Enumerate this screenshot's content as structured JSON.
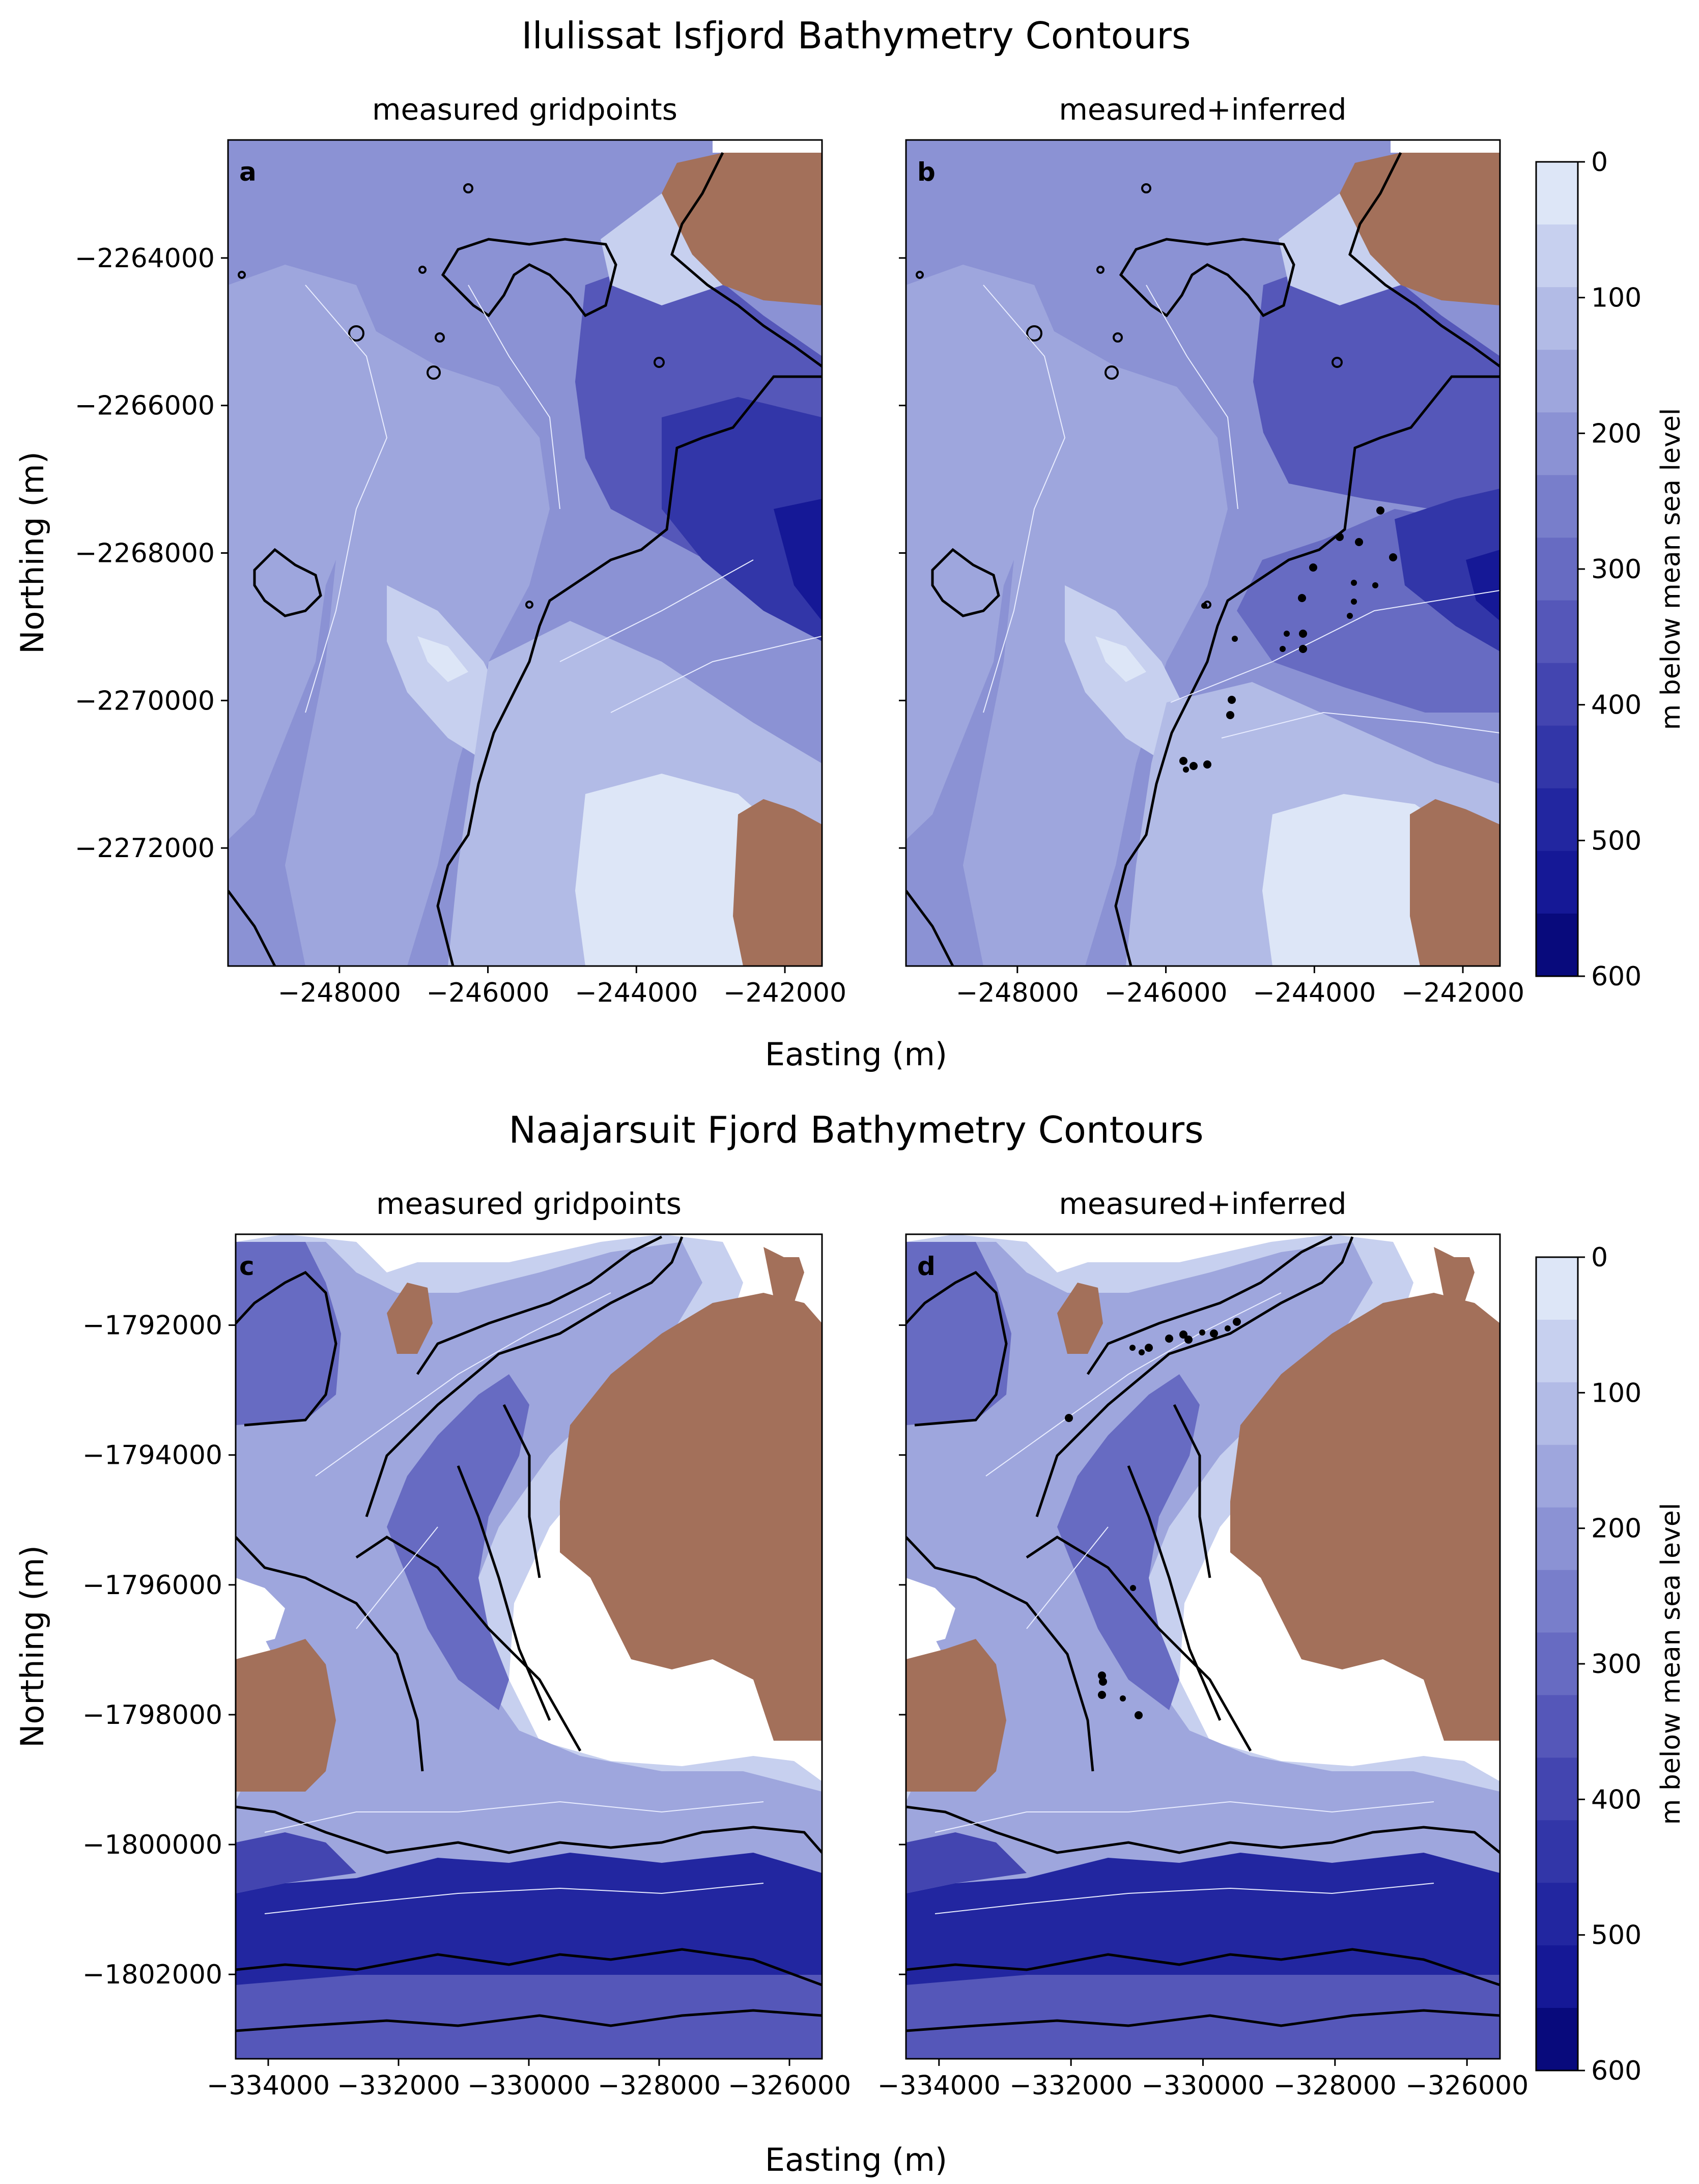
{
  "colors": {
    "land": "#a3705a",
    "outline": "#000000",
    "contour_line": "#e8ecff",
    "bands": [
      "#dde6f7",
      "#c7d0ef",
      "#b2bbe6",
      "#9ea6dd",
      "#8b92d4",
      "#787ecb",
      "#676bc2",
      "#5557b9",
      "#4345b0",
      "#3236a8",
      "#2226a0",
      "#151896",
      "#080a7c"
    ]
  },
  "figure": {
    "top_title": "Ilulissat Isfjord Bathymetry Contours",
    "bottom_title": "Naajarsuit Fjord Bathymetry Contours",
    "top_xlabel": "Easting (m)",
    "bottom_xlabel": "Easting (m)",
    "top_ylabel": "Northing (m)",
    "bottom_ylabel": "Northing (m)"
  },
  "chart_data": [
    {
      "type": "heatmap",
      "panel": "a",
      "title": "measured gridpoints",
      "xlabel": "Easting (m)",
      "ylabel": "Northing (m)",
      "xlim": [
        -249500,
        -241500
      ],
      "ylim": [
        -2273600,
        -2262400
      ],
      "xticks": [
        -248000,
        -246000,
        -244000,
        -242000
      ],
      "yticks": [
        -2264000,
        -2266000,
        -2268000,
        -2270000,
        -2272000
      ],
      "xtick_labels": [
        "−248000",
        "−246000",
        "−244000",
        "−242000"
      ],
      "ytick_labels": [
        "−2264000",
        "−2266000",
        "−2268000",
        "−2270000",
        "−2272000"
      ],
      "colorbar": {
        "label": "m below mean sea level",
        "range": [
          0,
          600
        ],
        "ticks": [
          0,
          100,
          200,
          300,
          400,
          500,
          600
        ],
        "tick_labels": [
          "0",
          "100",
          "200",
          "300",
          "400",
          "500",
          "600"
        ],
        "levels": 13
      }
    },
    {
      "type": "heatmap",
      "panel": "b",
      "title": "measured+inferred",
      "xlabel": "Easting (m)",
      "xlim": [
        -249500,
        -241500
      ],
      "ylim": [
        -2273600,
        -2262400
      ],
      "xticks": [
        -248000,
        -246000,
        -244000,
        -242000
      ],
      "xtick_labels": [
        "−248000",
        "−246000",
        "−244000",
        "−242000"
      ],
      "colorbar": {
        "label": "m below mean sea level",
        "range": [
          0,
          600
        ],
        "ticks": [
          0,
          100,
          200,
          300,
          400,
          500,
          600
        ],
        "tick_labels": [
          "0",
          "100",
          "200",
          "300",
          "400",
          "500",
          "600"
        ],
        "levels": 13
      }
    },
    {
      "type": "heatmap",
      "panel": "c",
      "title": "measured gridpoints",
      "xlabel": "Easting (m)",
      "ylabel": "Northing (m)",
      "xlim": [
        -334500,
        -325500
      ],
      "ylim": [
        -1803300,
        -1790600
      ],
      "xticks": [
        -334000,
        -332000,
        -330000,
        -328000,
        -326000
      ],
      "yticks": [
        -1792000,
        -1794000,
        -1796000,
        -1798000,
        -1800000,
        -1802000
      ],
      "xtick_labels": [
        "−334000",
        "−332000",
        "−330000",
        "−328000",
        "−326000"
      ],
      "ytick_labels": [
        "−1792000",
        "−1794000",
        "−1796000",
        "−1798000",
        "−1800000",
        "−1802000"
      ],
      "colorbar": {
        "label": "m below mean sea level",
        "range": [
          0,
          600
        ],
        "ticks": [
          0,
          100,
          200,
          300,
          400,
          500,
          600
        ],
        "tick_labels": [
          "0",
          "100",
          "200",
          "300",
          "400",
          "500",
          "600"
        ],
        "levels": 13
      }
    },
    {
      "type": "heatmap",
      "panel": "d",
      "title": "measured+inferred",
      "xlabel": "Easting (m)",
      "xlim": [
        -334500,
        -325500
      ],
      "ylim": [
        -1803300,
        -1790600
      ],
      "xticks": [
        -334000,
        -332000,
        -330000,
        -328000,
        -326000
      ],
      "xtick_labels": [
        "−334000",
        "−332000",
        "−330000",
        "−328000",
        "−326000"
      ],
      "colorbar": {
        "label": "m below mean sea level",
        "range": [
          0,
          600
        ],
        "ticks": [
          0,
          100,
          200,
          300,
          400,
          500,
          600
        ],
        "tick_labels": [
          "0",
          "100",
          "200",
          "300",
          "400",
          "500",
          "600"
        ],
        "levels": 13
      }
    }
  ]
}
